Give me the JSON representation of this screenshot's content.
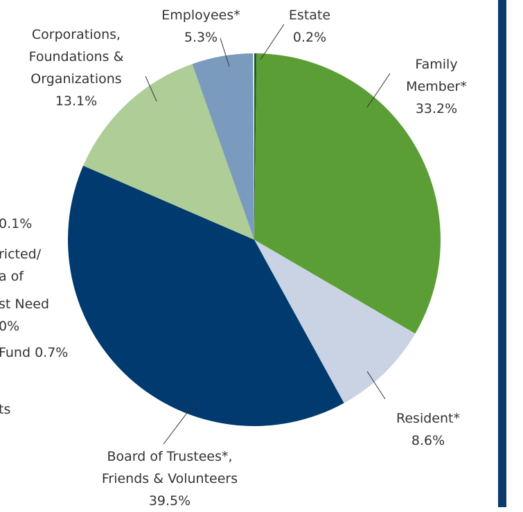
{
  "chart_data": {
    "type": "pie",
    "categories": [
      "Estate",
      "Family Member*",
      "Resident*",
      "Board of Trustees*,\nFriends & Volunteers",
      "Corporations,\nFoundations &\nOrganizations",
      "Employees*"
    ],
    "values": [
      0.2,
      33.2,
      8.6,
      39.5,
      13.1,
      5.3
    ],
    "value_labels": [
      "0.2%",
      "33.2%",
      "8.6%",
      "39.5%",
      "13.1%",
      "5.3%"
    ],
    "colors": [
      "#1f5a2e",
      "#5a9e35",
      "#c9d3e3",
      "#003a6e",
      "#aecd97",
      "#7a9bbd"
    ]
  },
  "cropped_labels": [
    "0.1%",
    "ricted/",
    "a of",
    "st Need",
    "0%",
    "Fund 0.7%",
    "ts"
  ]
}
